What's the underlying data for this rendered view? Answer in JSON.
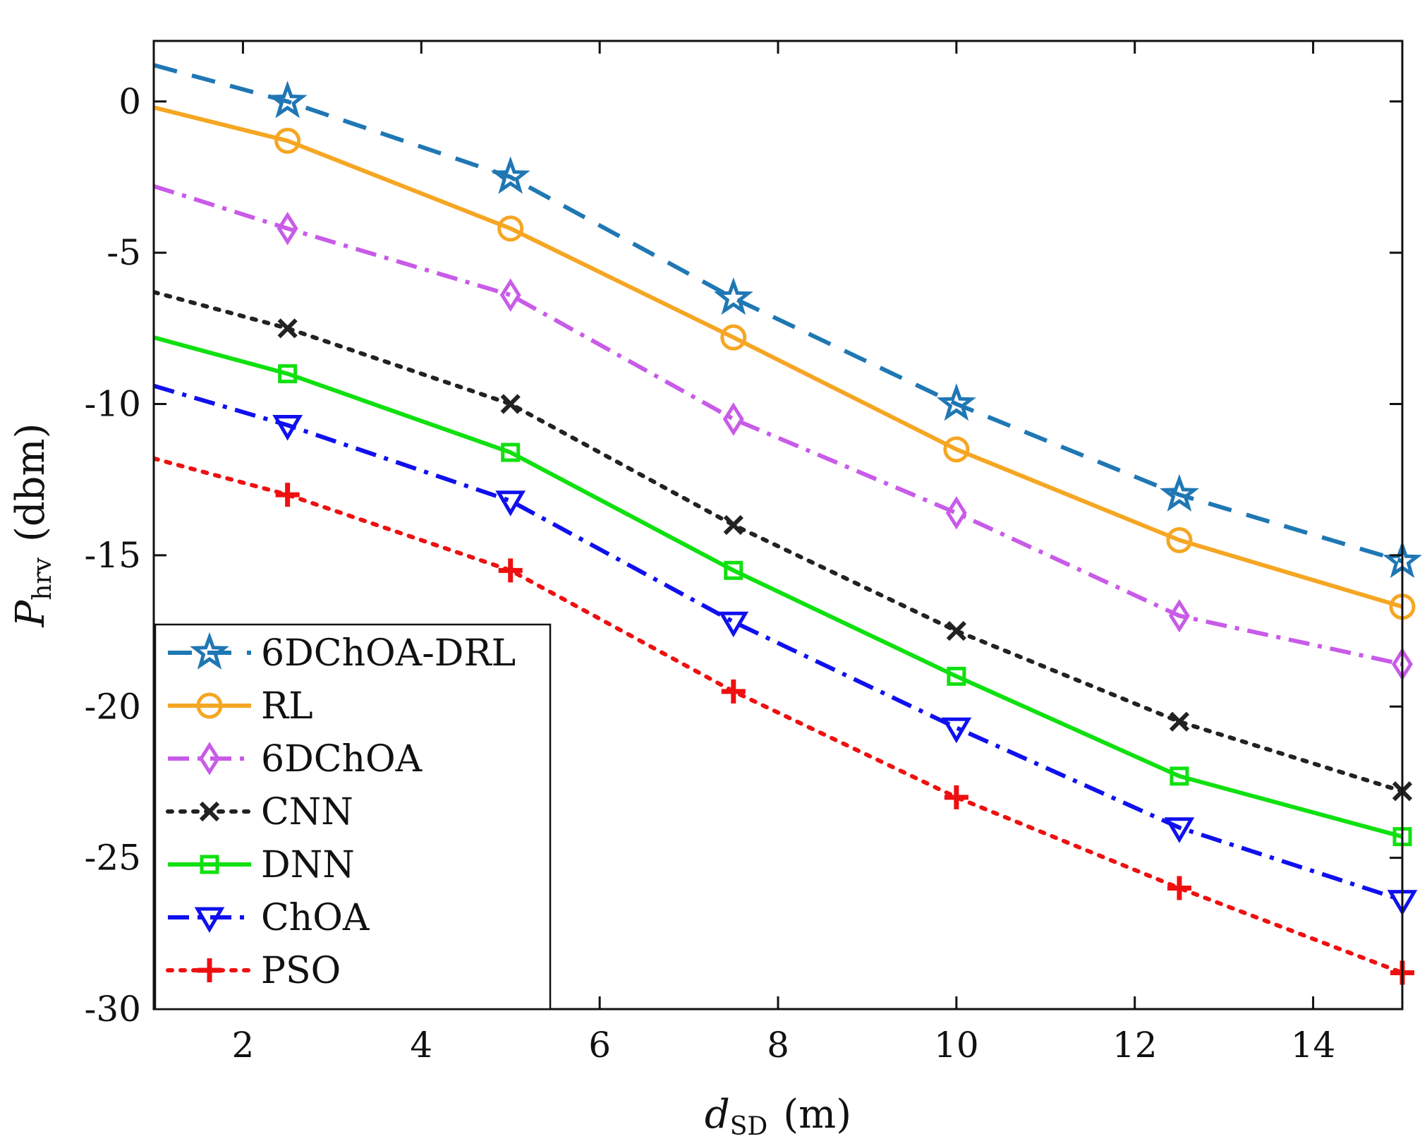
{
  "chart_data": {
    "type": "line",
    "title": "",
    "xlabel": {
      "main": "d",
      "sub": "SD",
      "unit": "(m)"
    },
    "ylabel": {
      "main": "P",
      "sub": "hrv",
      "unit": "(dbm)"
    },
    "xlim": [
      1,
      15
    ],
    "ylim": [
      -30,
      2
    ],
    "xticks": [
      2,
      4,
      6,
      8,
      10,
      12,
      14
    ],
    "yticks": [
      0,
      -5,
      -10,
      -15,
      -20,
      -25,
      -30
    ],
    "grid": false,
    "legend_position": "bottom-left",
    "series": [
      {
        "name": "6DChOA-DRL",
        "color": "#1f77b4",
        "dash": "dashed",
        "marker": "star",
        "x": [
          1,
          2.5,
          5,
          7.5,
          10,
          12.5,
          15
        ],
        "y": [
          1.2,
          0.0,
          -2.5,
          -6.5,
          -10.0,
          -13.0,
          -15.2
        ]
      },
      {
        "name": "RL",
        "color": "#f5a623",
        "dash": "solid",
        "marker": "circle",
        "x": [
          1,
          2.5,
          5,
          7.5,
          10,
          12.5,
          15
        ],
        "y": [
          -0.2,
          -1.3,
          -4.2,
          -7.8,
          -11.5,
          -14.5,
          -16.7
        ]
      },
      {
        "name": "6DChOA",
        "color": "#c85be8",
        "dash": "dashdot",
        "marker": "diamond",
        "x": [
          1,
          2.5,
          5,
          7.5,
          10,
          12.5,
          15
        ],
        "y": [
          -2.8,
          -4.2,
          -6.4,
          -10.5,
          -13.6,
          -17.0,
          -18.6
        ]
      },
      {
        "name": "CNN",
        "color": "#222222",
        "dash": "dotted",
        "marker": "x",
        "x": [
          1,
          2.5,
          5,
          7.5,
          10,
          12.5,
          15
        ],
        "y": [
          -6.3,
          -7.5,
          -10.0,
          -14.0,
          -17.5,
          -20.5,
          -22.8
        ]
      },
      {
        "name": "DNN",
        "color": "#10e010",
        "dash": "solid",
        "marker": "square",
        "x": [
          1,
          2.5,
          5,
          7.5,
          10,
          12.5,
          15
        ],
        "y": [
          -7.8,
          -9.0,
          -11.6,
          -15.5,
          -19.0,
          -22.3,
          -24.3
        ]
      },
      {
        "name": "ChOA",
        "color": "#1010ee",
        "dash": "dashdot",
        "marker": "triangle-down",
        "x": [
          1,
          2.5,
          5,
          7.5,
          10,
          12.5,
          15
        ],
        "y": [
          -9.4,
          -10.7,
          -13.2,
          -17.2,
          -20.7,
          -24.0,
          -26.4
        ]
      },
      {
        "name": "PSO",
        "color": "#ee1010",
        "dash": "dotted",
        "marker": "plus",
        "x": [
          1,
          2.5,
          5,
          7.5,
          10,
          12.5,
          15
        ],
        "y": [
          -11.8,
          -13.0,
          -15.5,
          -19.5,
          -23.0,
          -26.0,
          -28.8
        ]
      }
    ]
  }
}
